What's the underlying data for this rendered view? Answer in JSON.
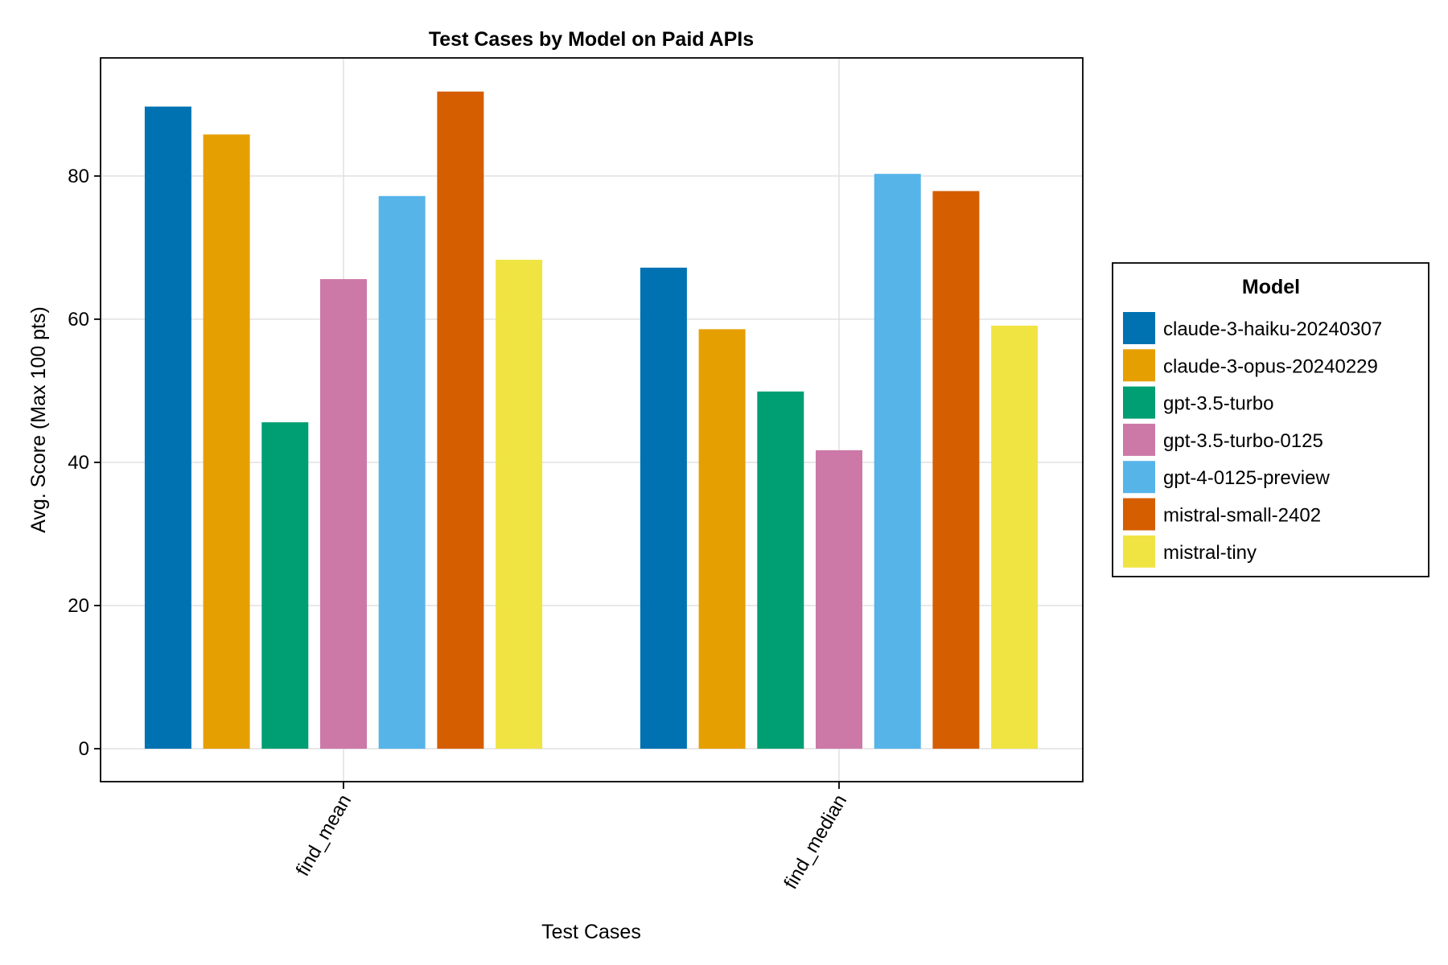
{
  "chart_data": {
    "type": "bar",
    "title": "Test Cases by Model on Paid APIs",
    "xlabel": "Test Cases",
    "ylabel": "Avg. Score (Max 100 pts)",
    "categories": [
      "find_mean",
      "find_median"
    ],
    "ylim": [
      -4.6,
      96.5
    ],
    "yticks": [
      0,
      20,
      40,
      60,
      80
    ],
    "grid": true,
    "legend": {
      "title": "Model",
      "placement": "right"
    },
    "series": [
      {
        "name": "claude-3-haiku-20240307",
        "color": "#0072B2",
        "values": [
          89.7,
          67.2
        ]
      },
      {
        "name": "claude-3-opus-20240229",
        "color": "#E69F00",
        "values": [
          85.8,
          58.6
        ]
      },
      {
        "name": "gpt-3.5-turbo",
        "color": "#009E73",
        "values": [
          45.6,
          49.9
        ]
      },
      {
        "name": "gpt-3.5-turbo-0125",
        "color": "#CC79A7",
        "values": [
          65.6,
          41.7
        ]
      },
      {
        "name": "gpt-4-0125-preview",
        "color": "#56B4E9",
        "values": [
          77.2,
          80.3
        ]
      },
      {
        "name": "mistral-small-2402",
        "color": "#D55E00",
        "values": [
          91.8,
          77.9
        ]
      },
      {
        "name": "mistral-tiny",
        "color": "#F0E442",
        "values": [
          68.3,
          59.1
        ]
      }
    ]
  }
}
